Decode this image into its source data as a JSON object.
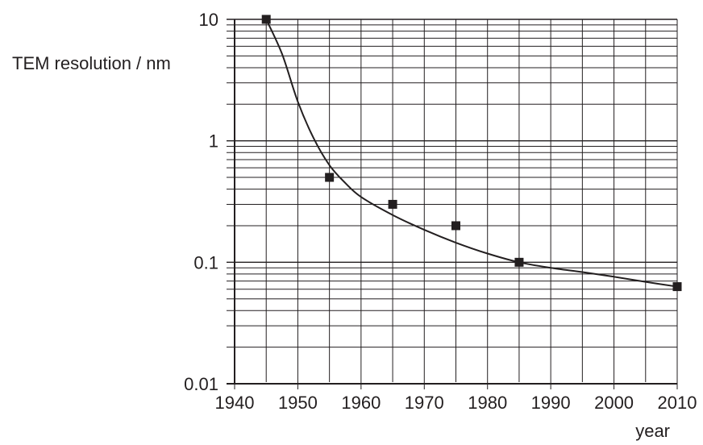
{
  "chart_data": {
    "type": "scatter",
    "title": "",
    "ylabel": "TEM resolution / nm",
    "xlabel": "year",
    "y_scale": "log",
    "xlim": [
      1940,
      2010
    ],
    "ylim": [
      0.01,
      10
    ],
    "grid": true,
    "x_ticks": [
      "1940",
      "1950",
      "1960",
      "1970",
      "1980",
      "1990",
      "2000",
      "2010"
    ],
    "x_tick_values": [
      1940,
      1950,
      1960,
      1970,
      1980,
      1990,
      2000,
      2010
    ],
    "y_ticks": [
      "0.01",
      "0.1",
      "1",
      "10"
    ],
    "y_tick_values": [
      0.01,
      0.1,
      1,
      10
    ],
    "points": [
      {
        "x": 1945,
        "y": 10
      },
      {
        "x": 1955,
        "y": 0.5
      },
      {
        "x": 1965,
        "y": 0.3
      },
      {
        "x": 1975,
        "y": 0.2
      },
      {
        "x": 1985,
        "y": 0.1
      },
      {
        "x": 2010,
        "y": 0.063
      }
    ],
    "curve": [
      {
        "x": 1945,
        "y": 10
      },
      {
        "x": 1947.5,
        "y": 5.2
      },
      {
        "x": 1950,
        "y": 2.1
      },
      {
        "x": 1952.5,
        "y": 1.05
      },
      {
        "x": 1955,
        "y": 0.63
      },
      {
        "x": 1957.5,
        "y": 0.45
      },
      {
        "x": 1960,
        "y": 0.345
      },
      {
        "x": 1965,
        "y": 0.245
      },
      {
        "x": 1970,
        "y": 0.185
      },
      {
        "x": 1975,
        "y": 0.145
      },
      {
        "x": 1980,
        "y": 0.118
      },
      {
        "x": 1985,
        "y": 0.1
      },
      {
        "x": 1990,
        "y": 0.09
      },
      {
        "x": 1995,
        "y": 0.083
      },
      {
        "x": 2000,
        "y": 0.076
      },
      {
        "x": 2005,
        "y": 0.069
      },
      {
        "x": 2010,
        "y": 0.063
      }
    ],
    "colors": {
      "ink": "#231f20",
      "marker": "#231f20",
      "background": "#ffffff"
    }
  }
}
